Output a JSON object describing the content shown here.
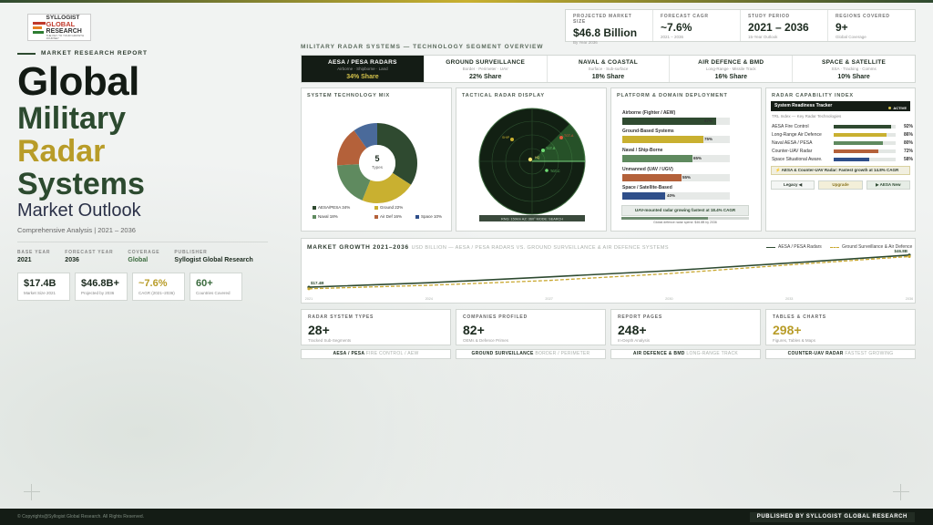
{
  "logo": {
    "line1": "SYLLOGIST",
    "line2": "GLOBAL",
    "line3": "RESEARCH",
    "tagline": "THE KEY TO YOUR GROWTH JOURNEY"
  },
  "left": {
    "kicker": "MARKET RESEARCH REPORT",
    "title_global": "Global",
    "title_military": "Military",
    "title_radar": "Radar",
    "title_systems": "Systems",
    "title_outlook": "Market Outlook",
    "subtitle": "Comprehensive Analysis  |  2021 – 2036",
    "meta": [
      {
        "label": "BASE YEAR",
        "value": "2021"
      },
      {
        "label": "FORECAST YEAR",
        "value": "2036"
      },
      {
        "label": "COVERAGE",
        "value": "Global"
      },
      {
        "label": "PUBLISHER",
        "value": "Syllogist Global Research"
      }
    ],
    "stats": [
      {
        "value": "$17.4B",
        "label": "Market Size 2021"
      },
      {
        "value": "$46.8B+",
        "label": "Projected by 2036"
      },
      {
        "value": "~7.6%",
        "label": "CAGR (2021–2036)"
      },
      {
        "value": "60+",
        "label": "Countries Covered"
      }
    ]
  },
  "kpis": [
    {
      "label": "PROJECTED MARKET SIZE",
      "value": "$46.8 Billion",
      "sub": "By Year 2036"
    },
    {
      "label": "FORECAST CAGR",
      "value": "~7.6%",
      "sub": "2021 – 2036"
    },
    {
      "label": "STUDY PERIOD",
      "value": "2021 – 2036",
      "sub": "15-Year Outlook"
    },
    {
      "label": "REGIONS COVERED",
      "value": "9+",
      "sub": "Global Coverage"
    }
  ],
  "segments_title": "MILITARY RADAR SYSTEMS — TECHNOLOGY SEGMENT OVERVIEW",
  "segments": [
    {
      "name": "AESA / PESA RADARS",
      "sub": "Airborne · Shipborne · Land",
      "share": "34% Share"
    },
    {
      "name": "GROUND SURVEILLANCE",
      "sub": "Border · Perimeter · UAV",
      "share": "22% Share"
    },
    {
      "name": "NAVAL & COASTAL",
      "sub": "Surface · Sub-surface",
      "share": "18% Share"
    },
    {
      "name": "AIR DEFENCE & BMD",
      "sub": "Long-Range · Missile Track",
      "share": "16% Share"
    },
    {
      "name": "SPACE & SATELLITE",
      "sub": "SSA · Tracking · Comms",
      "share": "10% Share"
    }
  ],
  "tech_mix": {
    "title": "SYSTEM TECHNOLOGY MIX",
    "center_value": "5",
    "center_label": "Types",
    "legend": [
      "AESA/PESA 34%",
      "Ground 22%",
      "Naval 18%",
      "Air Def 16%",
      "Space 10%"
    ]
  },
  "radar": {
    "title": "TACTICAL RADAR DISPLAY",
    "targets": [
      "SHIP",
      "TGT-A",
      "TGT-B",
      "HQ",
      "TGT-C"
    ],
    "status": "RNG: 150km   AZ: 360°   MODE: SEARCH"
  },
  "platform": {
    "title": "PLATFORM & DOMAIN DEPLOYMENT",
    "items": [
      {
        "label": "Airborne (Fighter / AEW)",
        "value": "87%"
      },
      {
        "label": "Ground-Based Systems",
        "value": "75%"
      },
      {
        "label": "Naval / Ship-Borne",
        "value": "65%"
      },
      {
        "label": "Unmanned (UAV / UGV)",
        "value": "55%"
      },
      {
        "label": "Space / Satellite-Based",
        "value": "40%"
      }
    ],
    "note": "UAV-mounted radar growing fastest at 18.4% CAGR",
    "footnote": "Global defence radar spend: $46.8B by 2036"
  },
  "capability": {
    "title": "RADAR CAPABILITY INDEX",
    "head": "System Readiness Tracker",
    "badge": "ACTIVE",
    "sub": "TRL Index — Key Radar Technologies",
    "items": [
      {
        "label": "AESA Fire Control",
        "value": "92%"
      },
      {
        "label": "Long-Range Air Defence",
        "value": "86%"
      },
      {
        "label": "Naval AESA / PESA",
        "value": "80%"
      },
      {
        "label": "Counter-UAV Radar",
        "value": "72%"
      },
      {
        "label": "Space Situational Aware.",
        "value": "58%"
      }
    ],
    "note": "⚡ AESA & Counter-UAV Radar: Fastest growth at 14.8% CAGR",
    "buttons": [
      "Legacy ◀",
      "Upgrade",
      "▶ AESA New"
    ]
  },
  "growth": {
    "title": "MARKET GROWTH 2021–2036",
    "subtitle": "USD BILLION — AESA / PESA RADARS VS. GROUND SURVEILLANCE & AIR DEFENCE SYSTEMS",
    "legend_a": "AESA / PESA Radars",
    "legend_b": "Ground Surveillance & Air Defence"
  },
  "chart_data": {
    "type": "line",
    "title": "MARKET GROWTH 2021–2036",
    "x": [
      2021,
      2024,
      2027,
      2030,
      2033,
      2036
    ],
    "x_ticks": [
      "2021",
      "2024",
      "2027",
      "2030",
      "2033",
      "2036"
    ],
    "series": [
      {
        "name": "AESA / PESA Radars",
        "values": [
          17.4,
          21.5,
          26.8,
          32.5,
          39.5,
          46.8
        ]
      },
      {
        "name": "Ground Surveillance & Air Defence",
        "values": [
          16.0,
          19.2,
          23.6,
          29.8,
          37.8,
          45.5
        ]
      }
    ],
    "start_label": "$17.4B",
    "end_label": "$46.8B",
    "ylim": [
      10,
      50
    ],
    "legend": "top-right"
  },
  "bottom_stats": [
    {
      "label": "RADAR SYSTEM TYPES",
      "value": "28+",
      "sub": "Tracked Sub-Segments"
    },
    {
      "label": "COMPANIES PROFILED",
      "value": "82+",
      "sub": "OEMs & Defence Primes"
    },
    {
      "label": "REPORT PAGES",
      "value": "248+",
      "sub": "In-Depth Analysis"
    },
    {
      "label": "TABLES & CHARTS",
      "value": "298+",
      "sub": "Figures, Tables & Maps"
    }
  ],
  "bottom_tags": [
    {
      "strong": "AESA / PESA",
      "muted": "FIRE CONTROL / AEW"
    },
    {
      "strong": "GROUND SURVEILLANCE",
      "muted": "BORDER / PERIMETER"
    },
    {
      "strong": "AIR DEFENCE & BMD",
      "muted": "LONG-RANGE TRACK"
    },
    {
      "strong": "COUNTER-UAV RADAR",
      "muted": "FASTEST GROWING"
    }
  ],
  "footer": {
    "copyright": "© Copyrights@Syllogist Global Research. All Rights Reserved.",
    "published": "PUBLISHED BY SYLLOGIST GLOBAL RESEARCH"
  },
  "colors": {
    "dark_green": "#2c4a2f",
    "gold": "#c9b030",
    "rust": "#b4613a",
    "navy": "#2f4f8a",
    "mid_green": "#5f8a5f"
  }
}
